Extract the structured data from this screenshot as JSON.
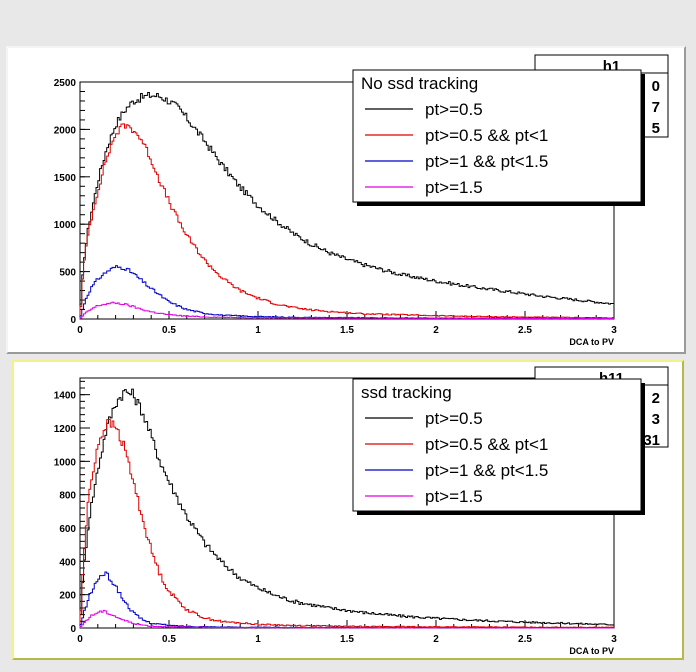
{
  "chart_data": [
    {
      "type": "line",
      "stats_title": "h1",
      "stats_values": [
        "0",
        "7",
        "5"
      ],
      "legend_title": "No ssd tracking",
      "xlabel": "DCA to PV",
      "xlim": [
        0,
        3
      ],
      "ylim": [
        0,
        2500
      ],
      "xticks": [
        "0",
        "0.5",
        "1",
        "1.5",
        "2",
        "2.5",
        "3"
      ],
      "yticks": [
        "0",
        "500",
        "1000",
        "1500",
        "2000",
        "2500"
      ],
      "series": [
        {
          "name": "pt>=0.5",
          "color": "#000000",
          "x": [
            0,
            0.02,
            0.05,
            0.1,
            0.15,
            0.2,
            0.25,
            0.3,
            0.35,
            0.4,
            0.45,
            0.5,
            0.55,
            0.6,
            0.7,
            0.8,
            0.9,
            1.0,
            1.1,
            1.2,
            1.3,
            1.4,
            1.5,
            1.6,
            1.8,
            2.0,
            2.2,
            2.4,
            2.6,
            2.8,
            3.0
          ],
          "y": [
            0,
            600,
            1000,
            1450,
            1800,
            2050,
            2200,
            2300,
            2340,
            2360,
            2350,
            2300,
            2230,
            2120,
            1880,
            1620,
            1390,
            1200,
            1040,
            900,
            790,
            700,
            630,
            570,
            470,
            400,
            340,
            290,
            240,
            200,
            160
          ]
        },
        {
          "name": "pt>=0.5 && pt<1",
          "color": "#e00000",
          "x": [
            0,
            0.02,
            0.05,
            0.1,
            0.15,
            0.2,
            0.25,
            0.3,
            0.35,
            0.4,
            0.45,
            0.5,
            0.55,
            0.6,
            0.7,
            0.8,
            0.9,
            1.0,
            1.1,
            1.2,
            1.3,
            1.4,
            1.5,
            1.6,
            1.8,
            2.0,
            2.2,
            2.4,
            2.6,
            2.8,
            3.0
          ],
          "y": [
            0,
            550,
            950,
            1350,
            1700,
            1950,
            2050,
            2000,
            1880,
            1680,
            1450,
            1240,
            1050,
            880,
            620,
            430,
            300,
            220,
            160,
            120,
            95,
            80,
            65,
            55,
            45,
            35,
            28,
            22,
            18,
            15,
            12
          ]
        },
        {
          "name": "pt>=1 && pt<1.5",
          "color": "#0000c8",
          "x": [
            0,
            0.03,
            0.06,
            0.1,
            0.15,
            0.2,
            0.25,
            0.3,
            0.35,
            0.4,
            0.5,
            0.6,
            0.7,
            0.8,
            1.0,
            1.2,
            1.5,
            2.0,
            2.5,
            3.0
          ],
          "y": [
            0,
            200,
            320,
            420,
            500,
            550,
            540,
            480,
            400,
            320,
            180,
            100,
            60,
            40,
            25,
            18,
            14,
            10,
            8,
            6
          ]
        },
        {
          "name": "pt>=1.5",
          "color": "#e000e0",
          "x": [
            0,
            0.03,
            0.06,
            0.1,
            0.15,
            0.2,
            0.25,
            0.3,
            0.35,
            0.4,
            0.5,
            0.6,
            0.7,
            0.8,
            1.0,
            1.2,
            1.5,
            2.0,
            2.5,
            3.0
          ],
          "y": [
            0,
            60,
            100,
            140,
            160,
            170,
            155,
            130,
            100,
            75,
            45,
            30,
            22,
            18,
            14,
            12,
            10,
            8,
            6,
            5
          ]
        }
      ]
    },
    {
      "type": "line",
      "stats_title": "h11",
      "stats_values": [
        "2",
        "3",
        "31"
      ],
      "legend_title": "ssd tracking",
      "xlabel": "DCA to PV",
      "xlim": [
        0,
        3
      ],
      "ylim": [
        0,
        1500
      ],
      "xticks": [
        "0",
        "0.5",
        "1",
        "1.5",
        "2",
        "2.5",
        "3"
      ],
      "yticks": [
        "0",
        "200",
        "400",
        "600",
        "800",
        "1000",
        "1200",
        "1400"
      ],
      "series": [
        {
          "name": "pt>=0.5",
          "color": "#000000",
          "x": [
            0,
            0.02,
            0.05,
            0.1,
            0.15,
            0.2,
            0.25,
            0.3,
            0.35,
            0.4,
            0.45,
            0.5,
            0.6,
            0.7,
            0.8,
            0.9,
            1.0,
            1.1,
            1.2,
            1.4,
            1.6,
            1.8,
            2.0,
            2.2,
            2.5,
            2.8,
            3.0
          ],
          "y": [
            0,
            350,
            650,
            950,
            1200,
            1350,
            1420,
            1400,
            1300,
            1150,
            1000,
            880,
            670,
            510,
            390,
            300,
            240,
            195,
            160,
            120,
            92,
            72,
            58,
            47,
            35,
            26,
            20
          ]
        },
        {
          "name": "pt>=0.5 && pt<1",
          "color": "#e00000",
          "x": [
            0,
            0.02,
            0.05,
            0.1,
            0.15,
            0.2,
            0.25,
            0.3,
            0.35,
            0.4,
            0.45,
            0.5,
            0.6,
            0.7,
            0.8,
            1.0,
            1.2,
            1.5,
            2.0,
            2.5,
            3.0
          ],
          "y": [
            0,
            420,
            800,
            1100,
            1230,
            1210,
            1080,
            880,
            660,
            470,
            320,
            220,
            110,
            60,
            38,
            22,
            15,
            10,
            7,
            5,
            4
          ]
        },
        {
          "name": "pt>=1 && pt<1.5",
          "color": "#0000c8",
          "x": [
            0,
            0.03,
            0.06,
            0.1,
            0.13,
            0.16,
            0.2,
            0.25,
            0.3,
            0.35,
            0.4,
            0.5,
            0.6,
            0.8,
            1.0,
            1.5,
            2.0,
            3.0
          ],
          "y": [
            0,
            120,
            210,
            290,
            330,
            310,
            250,
            160,
            90,
            50,
            30,
            15,
            10,
            6,
            4,
            3,
            2,
            1
          ]
        },
        {
          "name": "pt>=1.5",
          "color": "#e000e0",
          "x": [
            0,
            0.03,
            0.06,
            0.1,
            0.13,
            0.16,
            0.2,
            0.25,
            0.3,
            0.35,
            0.4,
            0.5,
            0.6,
            0.8,
            1.0,
            1.5,
            2.0,
            3.0
          ],
          "y": [
            0,
            40,
            70,
            95,
            100,
            90,
            70,
            45,
            28,
            18,
            12,
            7,
            5,
            3,
            2,
            1,
            1,
            0
          ]
        }
      ]
    }
  ]
}
